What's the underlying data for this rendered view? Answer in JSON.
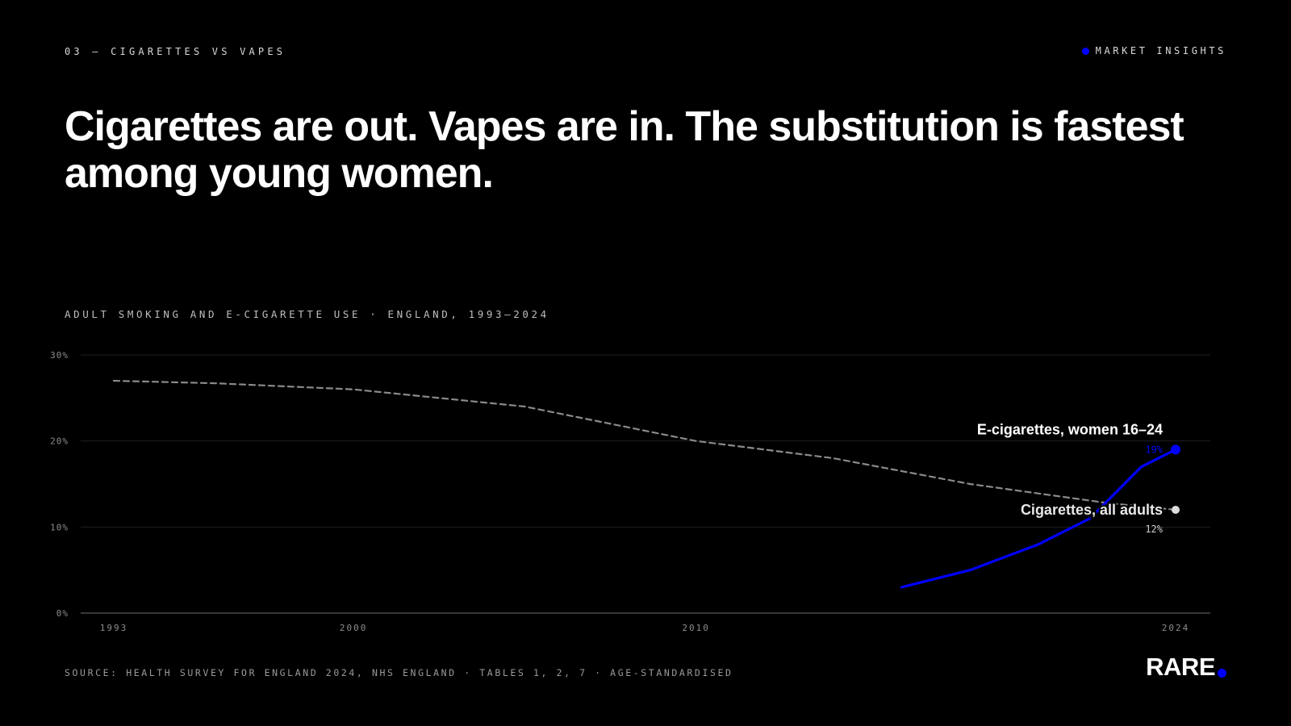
{
  "header": {
    "eyebrow": "03 — CIGARETTES VS VAPES",
    "tag": "MARKET INSIGHTS"
  },
  "headline": "Cigarettes are out. Vapes are in. The substitution is fastest among young women.",
  "colors": {
    "accent": "#0000ff",
    "cigarettes": "#8a8a8a",
    "background": "#000000"
  },
  "chart_data": {
    "type": "line",
    "title": "ADULT SMOKING AND E-CIGARETTE USE · ENGLAND, 1993–2024",
    "xlabel": "",
    "ylabel": "",
    "xlim": [
      1993,
      2024
    ],
    "ylim": [
      0,
      30
    ],
    "x_ticks": [
      1993,
      2000,
      2010,
      2024
    ],
    "y_ticks": [
      {
        "value": 0,
        "label": "0%"
      },
      {
        "value": 10,
        "label": "10%"
      },
      {
        "value": 20,
        "label": "20%"
      },
      {
        "value": 30,
        "label": "30%"
      }
    ],
    "grid": true,
    "series": [
      {
        "name": "Cigarettes, all adults",
        "style": "dashed",
        "color": "#8a8a8a",
        "end_label": "12%",
        "points": [
          [
            1993,
            27
          ],
          [
            1996,
            26.7
          ],
          [
            2000,
            26
          ],
          [
            2005,
            24
          ],
          [
            2010,
            20
          ],
          [
            2014,
            18
          ],
          [
            2018,
            15
          ],
          [
            2022,
            12.8
          ],
          [
            2024,
            12
          ]
        ]
      },
      {
        "name": "E-cigarettes, women 16–24",
        "style": "solid",
        "color": "#0000ff",
        "end_label": "19%",
        "points": [
          [
            2016,
            3
          ],
          [
            2018,
            5
          ],
          [
            2020,
            8
          ],
          [
            2021.5,
            11
          ],
          [
            2023,
            17
          ],
          [
            2024,
            19
          ]
        ]
      }
    ]
  },
  "footer": {
    "source": "SOURCE: HEALTH SURVEY FOR ENGLAND 2024, NHS ENGLAND · TABLES 1, 2, 7 · AGE-STANDARDISED",
    "logo": "RARE"
  }
}
